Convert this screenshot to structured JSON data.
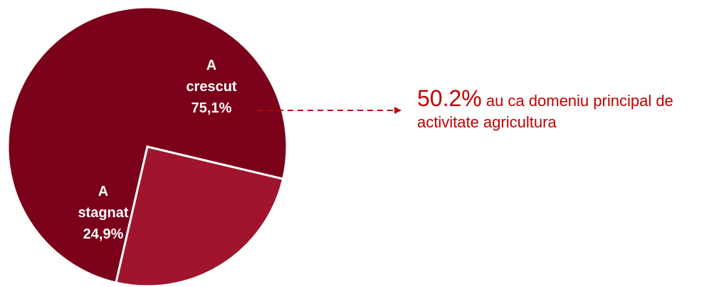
{
  "chart_data": {
    "type": "pie",
    "slices": [
      {
        "label_line1": "A",
        "label_line2": "crescut",
        "value_label": "75,1%",
        "value": 75.1,
        "color": "#7b0019"
      },
      {
        "label_line1": "A",
        "label_line2": "stagnat",
        "value_label": "24,9%",
        "value": 24.9,
        "color": "#a0152d"
      }
    ],
    "legend": "none"
  },
  "annotation": {
    "highlight": "50.2%",
    "text_part1": " au ca domeniu principal de",
    "text_part2": "activitate agricultura",
    "color": "#c00000"
  }
}
